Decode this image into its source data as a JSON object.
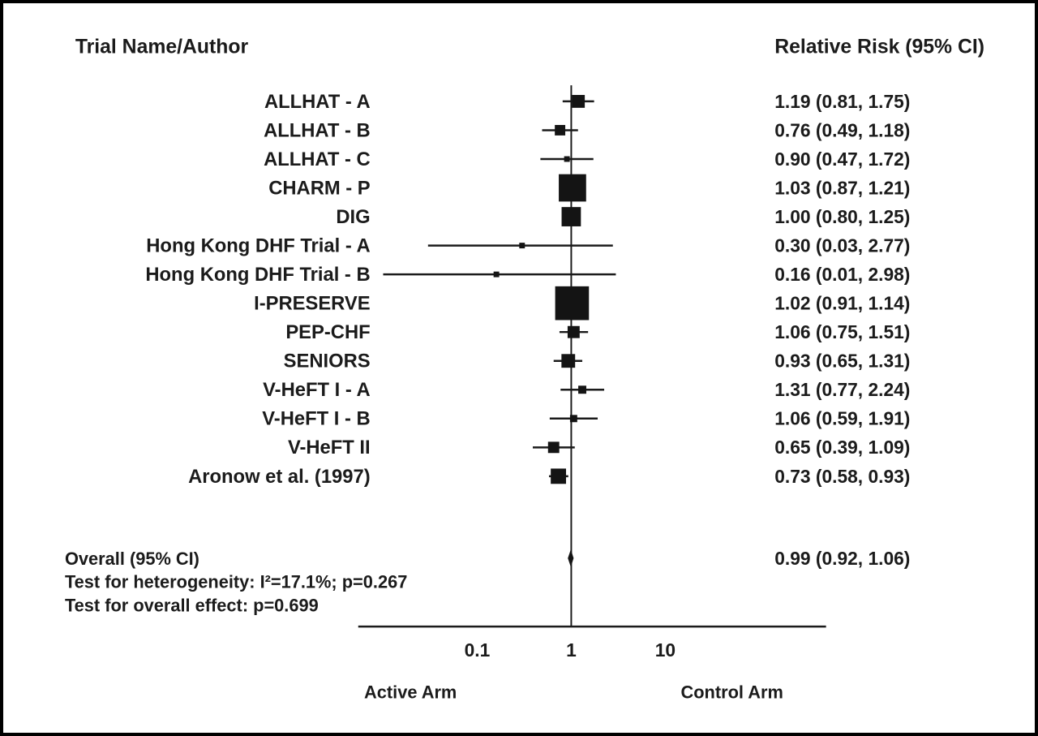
{
  "chart_data": {
    "type": "forest",
    "title_left": "Trial Name/Author",
    "title_right": "Relative Risk (95% CI)",
    "scale": "log10",
    "x_ticks": [
      0.1,
      1,
      10
    ],
    "x_tick_labels": [
      "0.1",
      "1",
      "10"
    ],
    "reference_line": 1,
    "axis_left_label": "Active Arm",
    "axis_right_label": "Control Arm",
    "rows": [
      {
        "label": "ALLHAT - A",
        "rr": 1.19,
        "lo": 0.81,
        "hi": 1.75,
        "display": "1.19 (0.81, 1.75)",
        "weight": 16
      },
      {
        "label": "ALLHAT - B",
        "rr": 0.76,
        "lo": 0.49,
        "hi": 1.18,
        "display": "0.76 (0.49, 1.18)",
        "weight": 13
      },
      {
        "label": "ALLHAT - C",
        "rr": 0.9,
        "lo": 0.47,
        "hi": 1.72,
        "display": "0.90 (0.47, 1.72)",
        "weight": 7
      },
      {
        "label": "CHARM - P",
        "rr": 1.03,
        "lo": 0.87,
        "hi": 1.21,
        "display": "1.03 (0.87, 1.21)",
        "weight": 34
      },
      {
        "label": "DIG",
        "rr": 1.0,
        "lo": 0.8,
        "hi": 1.25,
        "display": "1.00 (0.80, 1.25)",
        "weight": 24
      },
      {
        "label": "Hong Kong DHF Trial - A",
        "rr": 0.3,
        "lo": 0.03,
        "hi": 2.77,
        "display": "0.30 (0.03, 2.77)",
        "weight": 7
      },
      {
        "label": "Hong Kong DHF Trial - B",
        "rr": 0.16,
        "lo": 0.01,
        "hi": 2.98,
        "display": "0.16 (0.01, 2.98)",
        "weight": 7
      },
      {
        "label": "I-PRESERVE",
        "rr": 1.02,
        "lo": 0.91,
        "hi": 1.14,
        "display": "1.02 (0.91, 1.14)",
        "weight": 42
      },
      {
        "label": "PEP-CHF",
        "rr": 1.06,
        "lo": 0.75,
        "hi": 1.51,
        "display": "1.06 (0.75, 1.51)",
        "weight": 15
      },
      {
        "label": "SENIORS",
        "rr": 0.93,
        "lo": 0.65,
        "hi": 1.31,
        "display": "0.93 (0.65, 1.31)",
        "weight": 17
      },
      {
        "label": "V-HeFT I - A",
        "rr": 1.31,
        "lo": 0.77,
        "hi": 2.24,
        "display": "1.31 (0.77, 2.24)",
        "weight": 10
      },
      {
        "label": "V-HeFT I - B",
        "rr": 1.06,
        "lo": 0.59,
        "hi": 1.91,
        "display": "1.06 (0.59, 1.91)",
        "weight": 9
      },
      {
        "label": "V-HeFT II",
        "rr": 0.65,
        "lo": 0.39,
        "hi": 1.09,
        "display": "0.65 (0.39, 1.09)",
        "weight": 14
      },
      {
        "label": "Aronow et al. (1997)",
        "rr": 0.73,
        "lo": 0.58,
        "hi": 0.93,
        "display": "0.73 (0.58, 0.93)",
        "weight": 19
      }
    ],
    "overall": {
      "label": "Overall (95% CI)",
      "rr": 0.99,
      "lo": 0.92,
      "hi": 1.06,
      "display": "0.99 (0.92, 1.06)"
    },
    "heterogeneity": "Test for heterogeneity: I²=17.1%; p=0.267",
    "overall_effect": "Test for overall effect: p=0.699"
  }
}
